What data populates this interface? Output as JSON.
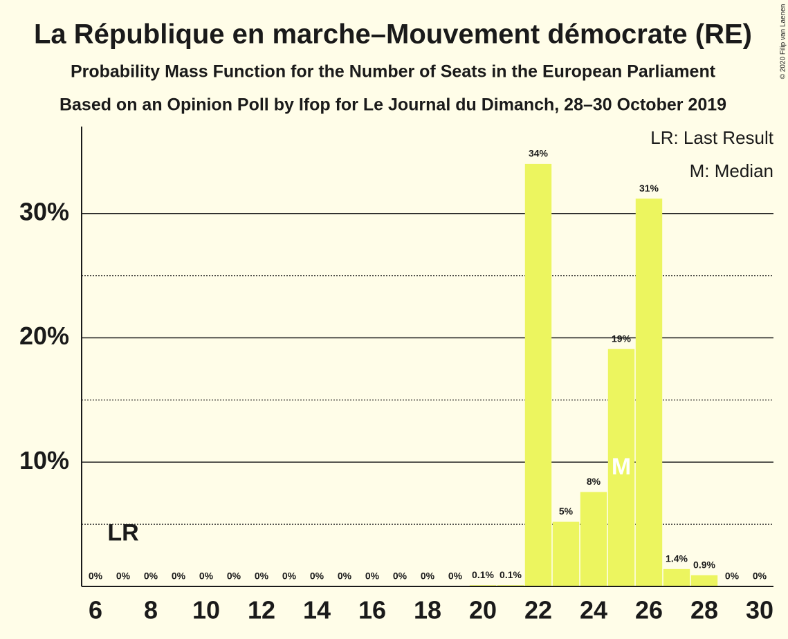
{
  "chart_data": {
    "type": "bar",
    "title": "La République en marche–Mouvement démocrate (RE)",
    "subtitles": [
      "Probability Mass Function for the Number of Seats in the European Parliament",
      "Based on an Opinion Poll by Ifop for Le Journal du Dimanch, 28–30 October 2019"
    ],
    "copyright": "© 2020 Filip van Laenen",
    "x": [
      6,
      7,
      8,
      9,
      10,
      11,
      12,
      13,
      14,
      15,
      16,
      17,
      18,
      19,
      20,
      21,
      22,
      23,
      24,
      25,
      26,
      27,
      28,
      29,
      30
    ],
    "values": [
      0,
      0,
      0,
      0,
      0,
      0,
      0,
      0,
      0,
      0,
      0,
      0,
      0,
      0,
      0.1,
      0.1,
      34,
      5.2,
      7.6,
      19.1,
      31.2,
      1.4,
      0.9,
      0,
      0
    ],
    "value_labels": [
      "0%",
      "0%",
      "0%",
      "0%",
      "0%",
      "0%",
      "0%",
      "0%",
      "0%",
      "0%",
      "0%",
      "0%",
      "0%",
      "0%",
      "0.1%",
      "0.1%",
      "34%",
      "5%",
      "8%",
      "19%",
      "31%",
      "1.4%",
      "0.9%",
      "0%",
      "0%"
    ],
    "color": "#ecf55f",
    "xlim": [
      5.5,
      30.5
    ],
    "xticks": [
      6,
      8,
      10,
      12,
      14,
      16,
      18,
      20,
      22,
      24,
      26,
      28,
      30
    ],
    "ylim": [
      0,
      37
    ],
    "yticks": [
      {
        "value": 10,
        "label": "10%"
      },
      {
        "value": 20,
        "label": "20%"
      },
      {
        "value": 30,
        "label": "30%"
      }
    ],
    "minor_yticks": [
      5,
      15,
      25
    ],
    "grid": true,
    "annotations": [
      {
        "label": "LR",
        "x": 7,
        "y": 4.2,
        "color": "#1a1a1a"
      },
      {
        "label": "M",
        "x": 25,
        "y": 9.5,
        "color": "#ffffff"
      }
    ],
    "legend": [
      "LR: Last Result",
      "M: Median"
    ]
  }
}
